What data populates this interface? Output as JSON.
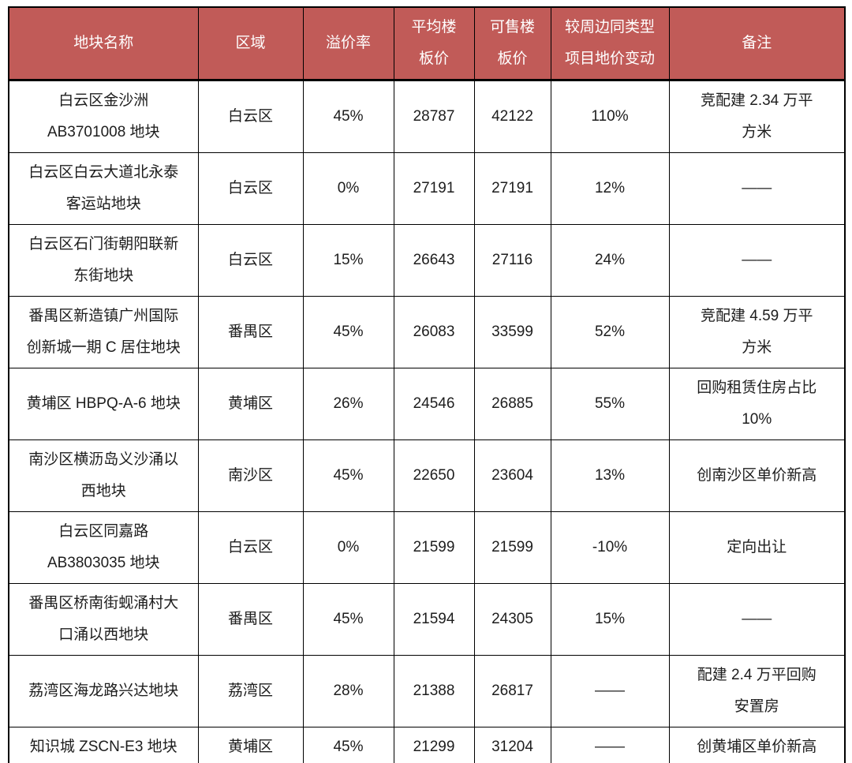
{
  "chart_data": {
    "type": "table",
    "columns": [
      "地块名称",
      "区域",
      "溢价率",
      "平均楼\n板价",
      "可售楼\n板价",
      "较周边同类型\n项目地价变动",
      "备注"
    ],
    "rows": [
      [
        "白云区金沙洲\nAB3701008 地块",
        "白云区",
        "45%",
        "28787",
        "42122",
        "110%",
        "竞配建 2.34 万平\n方米"
      ],
      [
        "白云区白云大道北永泰\n客运站地块",
        "白云区",
        "0%",
        "27191",
        "27191",
        "12%",
        "——"
      ],
      [
        "白云区石门街朝阳联新\n东街地块",
        "白云区",
        "15%",
        "26643",
        "27116",
        "24%",
        "——"
      ],
      [
        "番禺区新造镇广州国际\n创新城一期 C 居住地块",
        "番禺区",
        "45%",
        "26083",
        "33599",
        "52%",
        "竞配建 4.59 万平\n方米"
      ],
      [
        "黄埔区 HBPQ-A-6 地块",
        "黄埔区",
        "26%",
        "24546",
        "26885",
        "55%",
        "回购租赁住房占比\n10%"
      ],
      [
        "南沙区横沥岛义沙涌以\n西地块",
        "南沙区",
        "45%",
        "22650",
        "23604",
        "13%",
        "创南沙区单价新高"
      ],
      [
        "白云区同嘉路\nAB3803035 地块",
        "白云区",
        "0%",
        "21599",
        "21599",
        "-10%",
        "定向出让"
      ],
      [
        "番禺区桥南街蚬涌村大\n口涌以西地块",
        "番禺区",
        "45%",
        "21594",
        "24305",
        "15%",
        "——"
      ],
      [
        "荔湾区海龙路兴达地块",
        "荔湾区",
        "28%",
        "21388",
        "26817",
        "——",
        "配建 2.4 万平回购\n安置房"
      ],
      [
        "知识城 ZSCN-E3 地块",
        "黄埔区",
        "45%",
        "21299",
        "31204",
        "——",
        "创黄埔区单价新高"
      ]
    ]
  },
  "colors": {
    "header_bg": "#C15B58",
    "header_text": "#FFFFFF",
    "border": "#000000",
    "body_text": "#1D1D1D"
  }
}
